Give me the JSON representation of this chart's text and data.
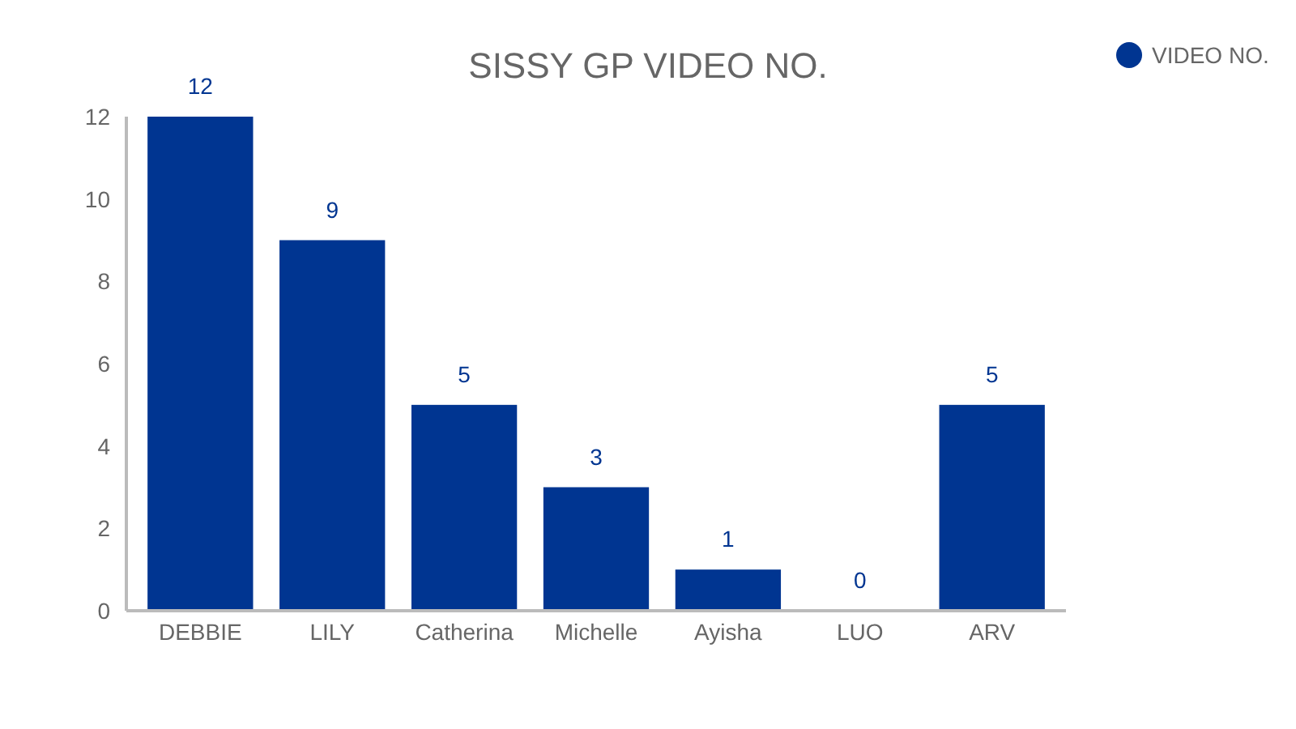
{
  "chart_data": {
    "type": "bar",
    "title": "SISSY GP VIDEO NO.",
    "categories": [
      "DEBBIE",
      "LILY",
      "Catherina",
      "Michelle",
      "Ayisha",
      "LUO",
      "ARV"
    ],
    "series": [
      {
        "name": "VIDEO NO.",
        "color": "#003591",
        "values": [
          12,
          9,
          5,
          3,
          1,
          0,
          5
        ]
      }
    ],
    "ylim": [
      0,
      12
    ],
    "yticks": [
      0,
      2,
      4,
      6,
      8,
      10,
      12
    ],
    "grid": false,
    "legend": "top right",
    "data_labels": true
  }
}
